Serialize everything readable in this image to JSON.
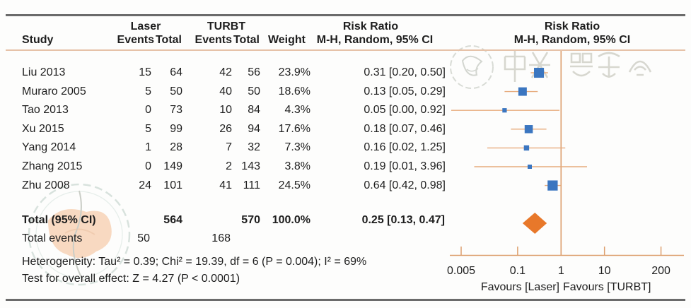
{
  "header": {
    "study_label": "Study",
    "group1": {
      "name": "Laser",
      "col1": "Events",
      "col2": "Total"
    },
    "group2": {
      "name": "TURBT",
      "col1": "Events",
      "col2": "Total"
    },
    "weight_label": "Weight",
    "rr_text": {
      "title": "Risk Ratio",
      "subtitle": "M-H, Random, 95% CI"
    },
    "rr_plot": {
      "title": "Risk Ratio",
      "subtitle": "M-H, Random, 95% CI"
    }
  },
  "rows": [
    {
      "study": "Liu 2013",
      "e1": "15",
      "t1": "64",
      "e2": "42",
      "t2": "56",
      "w": "23.9%",
      "rr": "0.31 [0.20, 0.50]"
    },
    {
      "study": "Muraro 2005",
      "e1": "5",
      "t1": "50",
      "e2": "40",
      "t2": "50",
      "w": "18.6%",
      "rr": "0.13 [0.05, 0.29]"
    },
    {
      "study": "Tao 2013",
      "e1": "0",
      "t1": "73",
      "e2": "10",
      "t2": "84",
      "w": "4.3%",
      "rr": "0.05 [0.00, 0.92]"
    },
    {
      "study": "Xu 2015",
      "e1": "5",
      "t1": "99",
      "e2": "26",
      "t2": "94",
      "w": "17.6%",
      "rr": "0.18 [0.07, 0.46]"
    },
    {
      "study": "Yang 2014",
      "e1": "1",
      "t1": "28",
      "e2": "7",
      "t2": "32",
      "w": "7.3%",
      "rr": "0.16 [0.02, 1.25]"
    },
    {
      "study": "Zhang 2015",
      "e1": "0",
      "t1": "149",
      "e2": "2",
      "t2": "143",
      "w": "3.8%",
      "rr": "0.19 [0.01, 3.96]"
    },
    {
      "study": "Zhu 2008",
      "e1": "24",
      "t1": "101",
      "e2": "41",
      "t2": "111",
      "w": "24.5%",
      "rr": "0.64 [0.42, 0.98]"
    }
  ],
  "total": {
    "label": "Total (95% CI)",
    "t1": "564",
    "t2": "570",
    "w": "100.0%",
    "rr": "0.25 [0.13, 0.47]"
  },
  "total_events": {
    "label": "Total events",
    "e1": "50",
    "e2": "168"
  },
  "heterogeneity": "Heterogeneity: Tau² = 0.39; Chi² = 19.39, df = 6 (P = 0.004); I² = 69%",
  "overall_effect": "Test for overall effect: Z = 4.27 (P < 0.0001)",
  "axis": {
    "tick_labels": [
      "0.005",
      "0.1",
      "1",
      "10",
      "200"
    ],
    "tick_values": [
      0.005,
      0.1,
      1,
      10,
      200
    ],
    "favours_left": "Favours [Laser]",
    "favours_right": "Favours [TURBT]"
  },
  "watermark": {
    "text": "中華醫學會"
  },
  "colors": {
    "square": "#3b76c0",
    "diamond": "#e8782a",
    "ci_line": "#e7ab7d",
    "axis_line": "#dd9f6e",
    "rule": "#6b6b6b",
    "header_underline": "#e6c2a8",
    "text": "#1e1e1e"
  },
  "chart_data": {
    "type": "scatter",
    "subtype": "forest-plot",
    "title": "Risk Ratio",
    "effect_measure": "M-H, Random, 95% CI",
    "x_scale": "log",
    "xlim": [
      0.005,
      200
    ],
    "x_ticks": [
      0.005,
      0.1,
      1,
      10,
      200
    ],
    "null_line": 1,
    "studies": [
      {
        "name": "Liu 2013",
        "rr": 0.31,
        "ci_low": 0.2,
        "ci_high": 0.5,
        "weight": 23.9
      },
      {
        "name": "Muraro 2005",
        "rr": 0.13,
        "ci_low": 0.05,
        "ci_high": 0.29,
        "weight": 18.6
      },
      {
        "name": "Tao 2013",
        "rr": 0.05,
        "ci_low": 0.0,
        "ci_high": 0.92,
        "weight": 4.3
      },
      {
        "name": "Xu 2015",
        "rr": 0.18,
        "ci_low": 0.07,
        "ci_high": 0.46,
        "weight": 17.6
      },
      {
        "name": "Yang 2014",
        "rr": 0.16,
        "ci_low": 0.02,
        "ci_high": 1.25,
        "weight": 7.3
      },
      {
        "name": "Zhang 2015",
        "rr": 0.19,
        "ci_low": 0.01,
        "ci_high": 3.96,
        "weight": 3.8
      },
      {
        "name": "Zhu 2008",
        "rr": 0.64,
        "ci_low": 0.42,
        "ci_high": 0.98,
        "weight": 24.5
      }
    ],
    "total": {
      "rr": 0.25,
      "ci_low": 0.13,
      "ci_high": 0.47
    }
  }
}
